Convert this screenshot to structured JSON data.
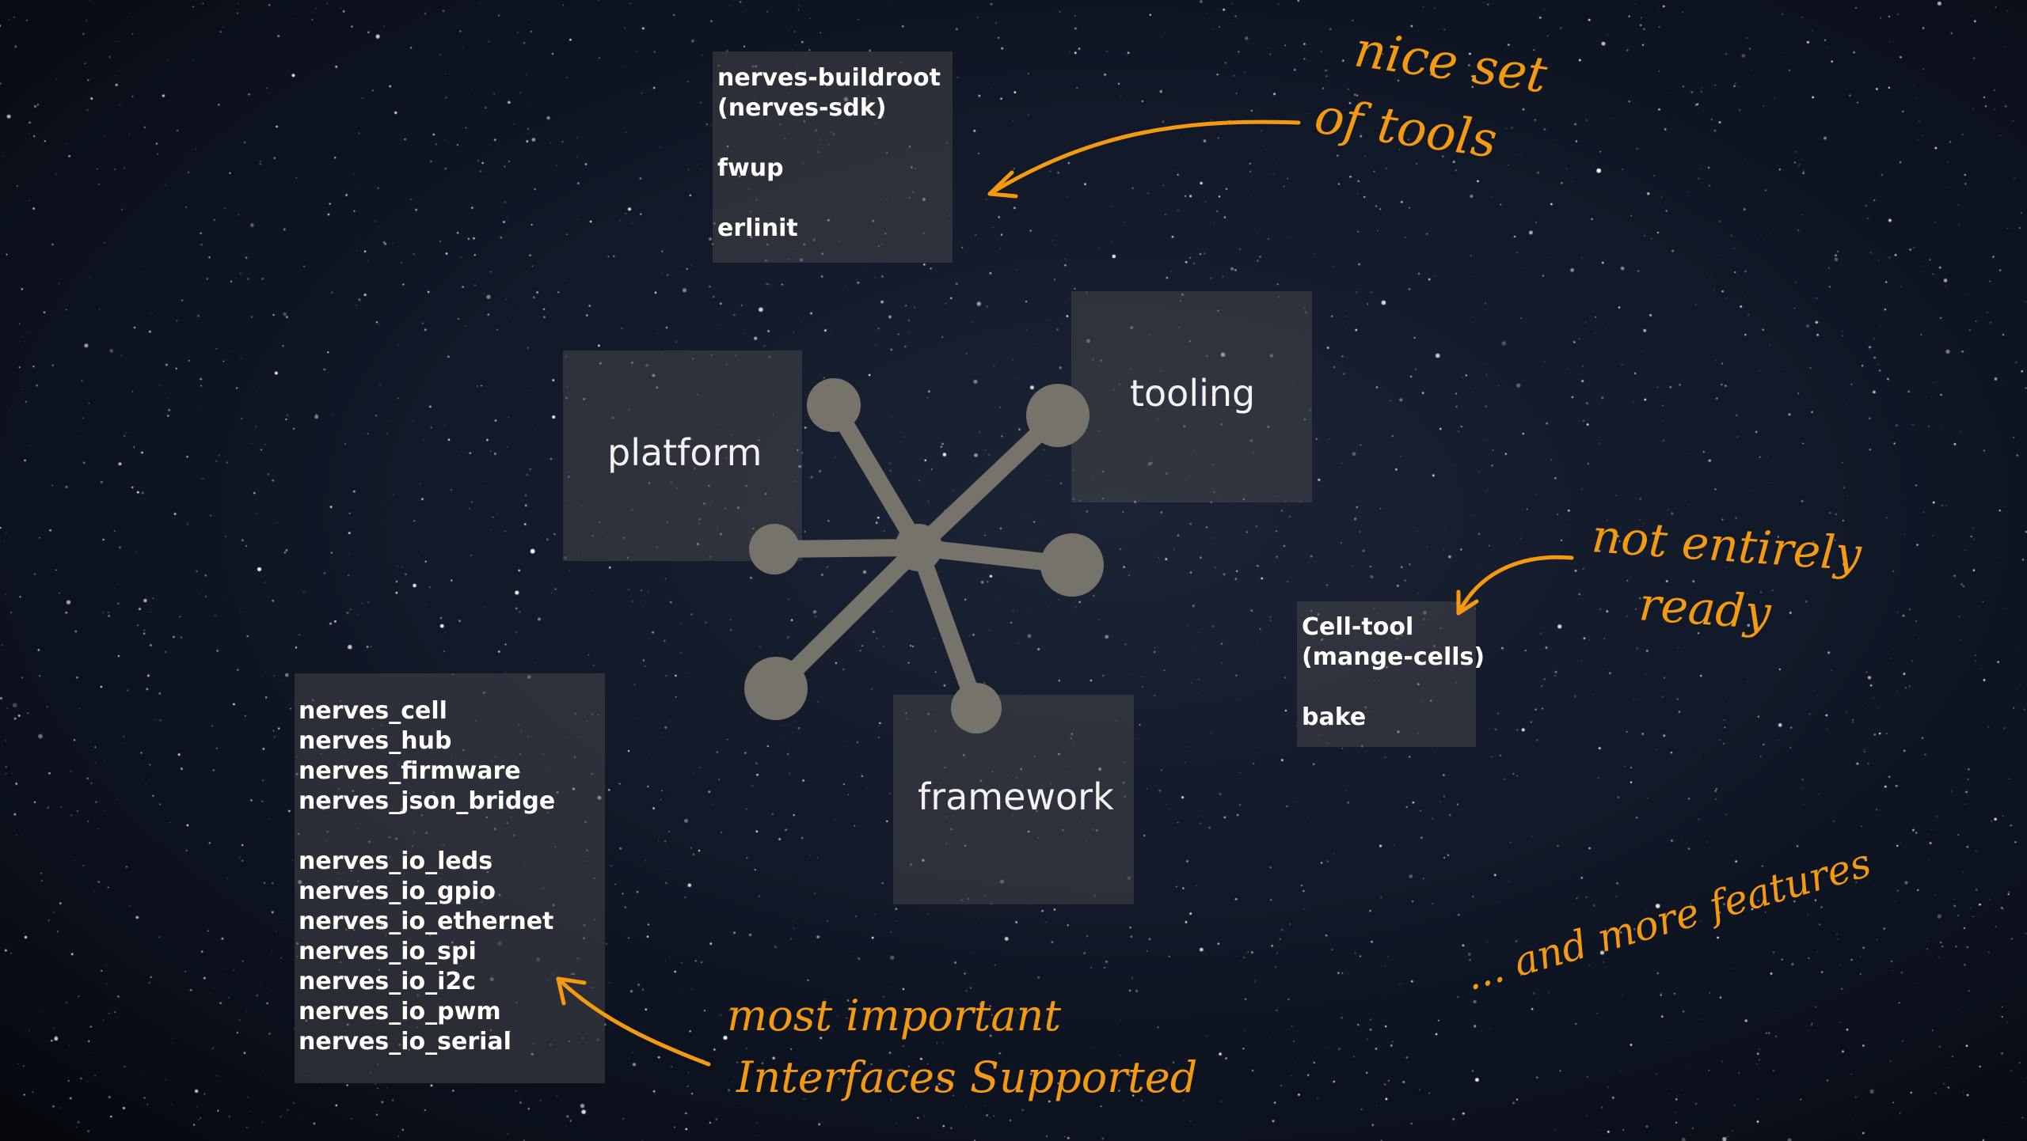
{
  "diagram": {
    "platform_label": "platform",
    "tooling_label": "tooling",
    "framework_label": "framework",
    "tools_list": [
      "nerves-buildroot",
      "(nerves-sdk)",
      "",
      "fwup",
      "",
      "erlinit"
    ],
    "cell_list": [
      "Cell-tool",
      "(mange-cells)",
      "",
      "bake"
    ],
    "libs_list": [
      "nerves_cell",
      "nerves_hub",
      "nerves_firmware",
      "nerves_json_bridge",
      "",
      "nerves_io_leds",
      "nerves_io_gpio",
      "nerves_io_ethernet",
      "nerves_io_spi",
      "nerves_io_i2c",
      "nerves_io_pwm",
      "nerves_io_serial"
    ]
  },
  "annotations": {
    "nice_line1": "nice set",
    "nice_line2": "of tools",
    "not_ready_line1": "not entirely",
    "not_ready_line2": "ready",
    "important_line1": "most important",
    "important_line2": "Interfaces Supported",
    "more_features": "... and more features"
  },
  "colors": {
    "annotation": "#f39a12",
    "hub": "#76746a",
    "panel": "#46464b"
  }
}
